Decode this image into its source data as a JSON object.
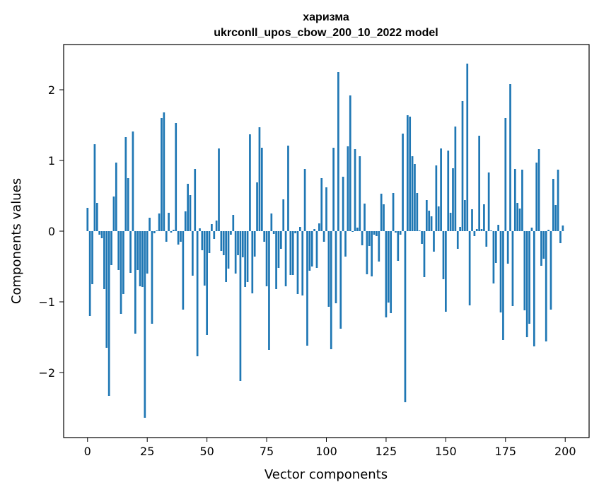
{
  "chart_data": {
    "type": "bar",
    "title": "харизма",
    "subtitle": "ukrconll_upos_cbow_200_10_2022 model",
    "xlabel": "Vector components",
    "ylabel": "Components values",
    "xlim": [
      -10,
      210
    ],
    "ylim": [
      -2.92,
      2.64
    ],
    "xticks": [
      0,
      25,
      50,
      75,
      100,
      125,
      150,
      175,
      200
    ],
    "yticks": [
      -2,
      -1,
      0,
      1,
      2
    ],
    "ytick_labels": [
      "−2",
      "−1",
      "0",
      "1",
      "2"
    ],
    "grid": false,
    "bar_color": "#1f77b4",
    "x": [
      0,
      1,
      2,
      3,
      4,
      5,
      6,
      7,
      8,
      9,
      10,
      11,
      12,
      13,
      14,
      15,
      16,
      17,
      18,
      19,
      20,
      21,
      22,
      23,
      24,
      25,
      26,
      27,
      28,
      29,
      30,
      31,
      32,
      33,
      34,
      35,
      36,
      37,
      38,
      39,
      40,
      41,
      42,
      43,
      44,
      45,
      46,
      47,
      48,
      49,
      50,
      51,
      52,
      53,
      54,
      55,
      56,
      57,
      58,
      59,
      60,
      61,
      62,
      63,
      64,
      65,
      66,
      67,
      68,
      69,
      70,
      71,
      72,
      73,
      74,
      75,
      76,
      77,
      78,
      79,
      80,
      81,
      82,
      83,
      84,
      85,
      86,
      87,
      88,
      89,
      90,
      91,
      92,
      93,
      94,
      95,
      96,
      97,
      98,
      99,
      100,
      101,
      102,
      103,
      104,
      105,
      106,
      107,
      108,
      109,
      110,
      111,
      112,
      113,
      114,
      115,
      116,
      117,
      118,
      119,
      120,
      121,
      122,
      123,
      124,
      125,
      126,
      127,
      128,
      129,
      130,
      131,
      132,
      133,
      134,
      135,
      136,
      137,
      138,
      139,
      140,
      141,
      142,
      143,
      144,
      145,
      146,
      147,
      148,
      149,
      150,
      151,
      152,
      153,
      154,
      155,
      156,
      157,
      158,
      159,
      160,
      161,
      162,
      163,
      164,
      165,
      166,
      167,
      168,
      169,
      170,
      171,
      172,
      173,
      174,
      175,
      176,
      177,
      178,
      179,
      180,
      181,
      182,
      183,
      184,
      185,
      186,
      187,
      188,
      189,
      190,
      191,
      192,
      193,
      194,
      195,
      196,
      197,
      198,
      199
    ],
    "values": [
      0.33,
      -1.2,
      -0.75,
      1.23,
      0.4,
      -0.05,
      -0.1,
      -0.82,
      -1.65,
      -2.33,
      -0.48,
      0.49,
      0.97,
      -0.55,
      -1.17,
      -0.89,
      1.33,
      0.75,
      -0.59,
      1.41,
      -1.45,
      -0.55,
      -0.78,
      -0.79,
      -2.64,
      -0.6,
      0.19,
      -1.31,
      -0.03,
      0.01,
      0.25,
      1.6,
      1.68,
      -0.15,
      0.26,
      -0.02,
      0.02,
      1.53,
      -0.19,
      -0.15,
      -1.11,
      0.28,
      0.67,
      0.51,
      -0.63,
      0.88,
      -1.77,
      0.04,
      -0.27,
      -0.77,
      -1.47,
      -0.31,
      0.1,
      -0.11,
      0.15,
      1.17,
      -0.28,
      -0.34,
      -0.72,
      -0.53,
      -0.05,
      0.23,
      -0.6,
      -0.34,
      -2.12,
      -0.37,
      -0.79,
      -0.72,
      1.37,
      -0.88,
      -0.36,
      0.69,
      1.47,
      1.18,
      -0.15,
      -0.78,
      -1.68,
      0.25,
      -0.04,
      -0.82,
      -0.52,
      -0.25,
      0.45,
      -0.78,
      1.21,
      -0.62,
      -0.62,
      -0.03,
      -0.89,
      0.06,
      -0.91,
      0.88,
      -1.62,
      -0.56,
      -0.5,
      0.03,
      -0.52,
      0.11,
      0.75,
      -0.15,
      0.62,
      -1.07,
      -1.67,
      1.18,
      -1.02,
      2.25,
      -1.38,
      0.77,
      -0.36,
      1.2,
      1.92,
      -0.01,
      1.16,
      0.05,
      1.06,
      -0.2,
      0.39,
      -0.61,
      -0.21,
      -0.64,
      -0.05,
      -0.07,
      -0.43,
      0.53,
      0.38,
      -1.22,
      -1.01,
      -1.16,
      0.54,
      -0.02,
      -0.42,
      -0.05,
      1.38,
      -2.42,
      1.64,
      1.62,
      1.06,
      0.95,
      0.54,
      0.01,
      -0.18,
      -0.65,
      0.44,
      0.29,
      0.21,
      -0.29,
      0.93,
      0.35,
      1.17,
      -0.68,
      -1.14,
      1.14,
      0.26,
      0.89,
      1.48,
      -0.25,
      0.06,
      1.84,
      0.44,
      2.37,
      -1.05,
      0.31,
      -0.07,
      0.03,
      1.35,
      0.03,
      0.38,
      -0.22,
      0.83,
      0.01,
      -0.74,
      -0.45,
      0.09,
      -1.15,
      -1.54,
      1.6,
      -0.46,
      2.08,
      -1.06,
      0.88,
      0.4,
      0.32,
      0.87,
      -1.12,
      -1.5,
      -1.31,
      0.05,
      -1.63,
      0.97,
      1.16,
      -0.49,
      -0.39,
      -1.56,
      0.02,
      -1.11,
      0.74,
      0.37,
      0.87,
      -0.17,
      0.08
    ]
  }
}
